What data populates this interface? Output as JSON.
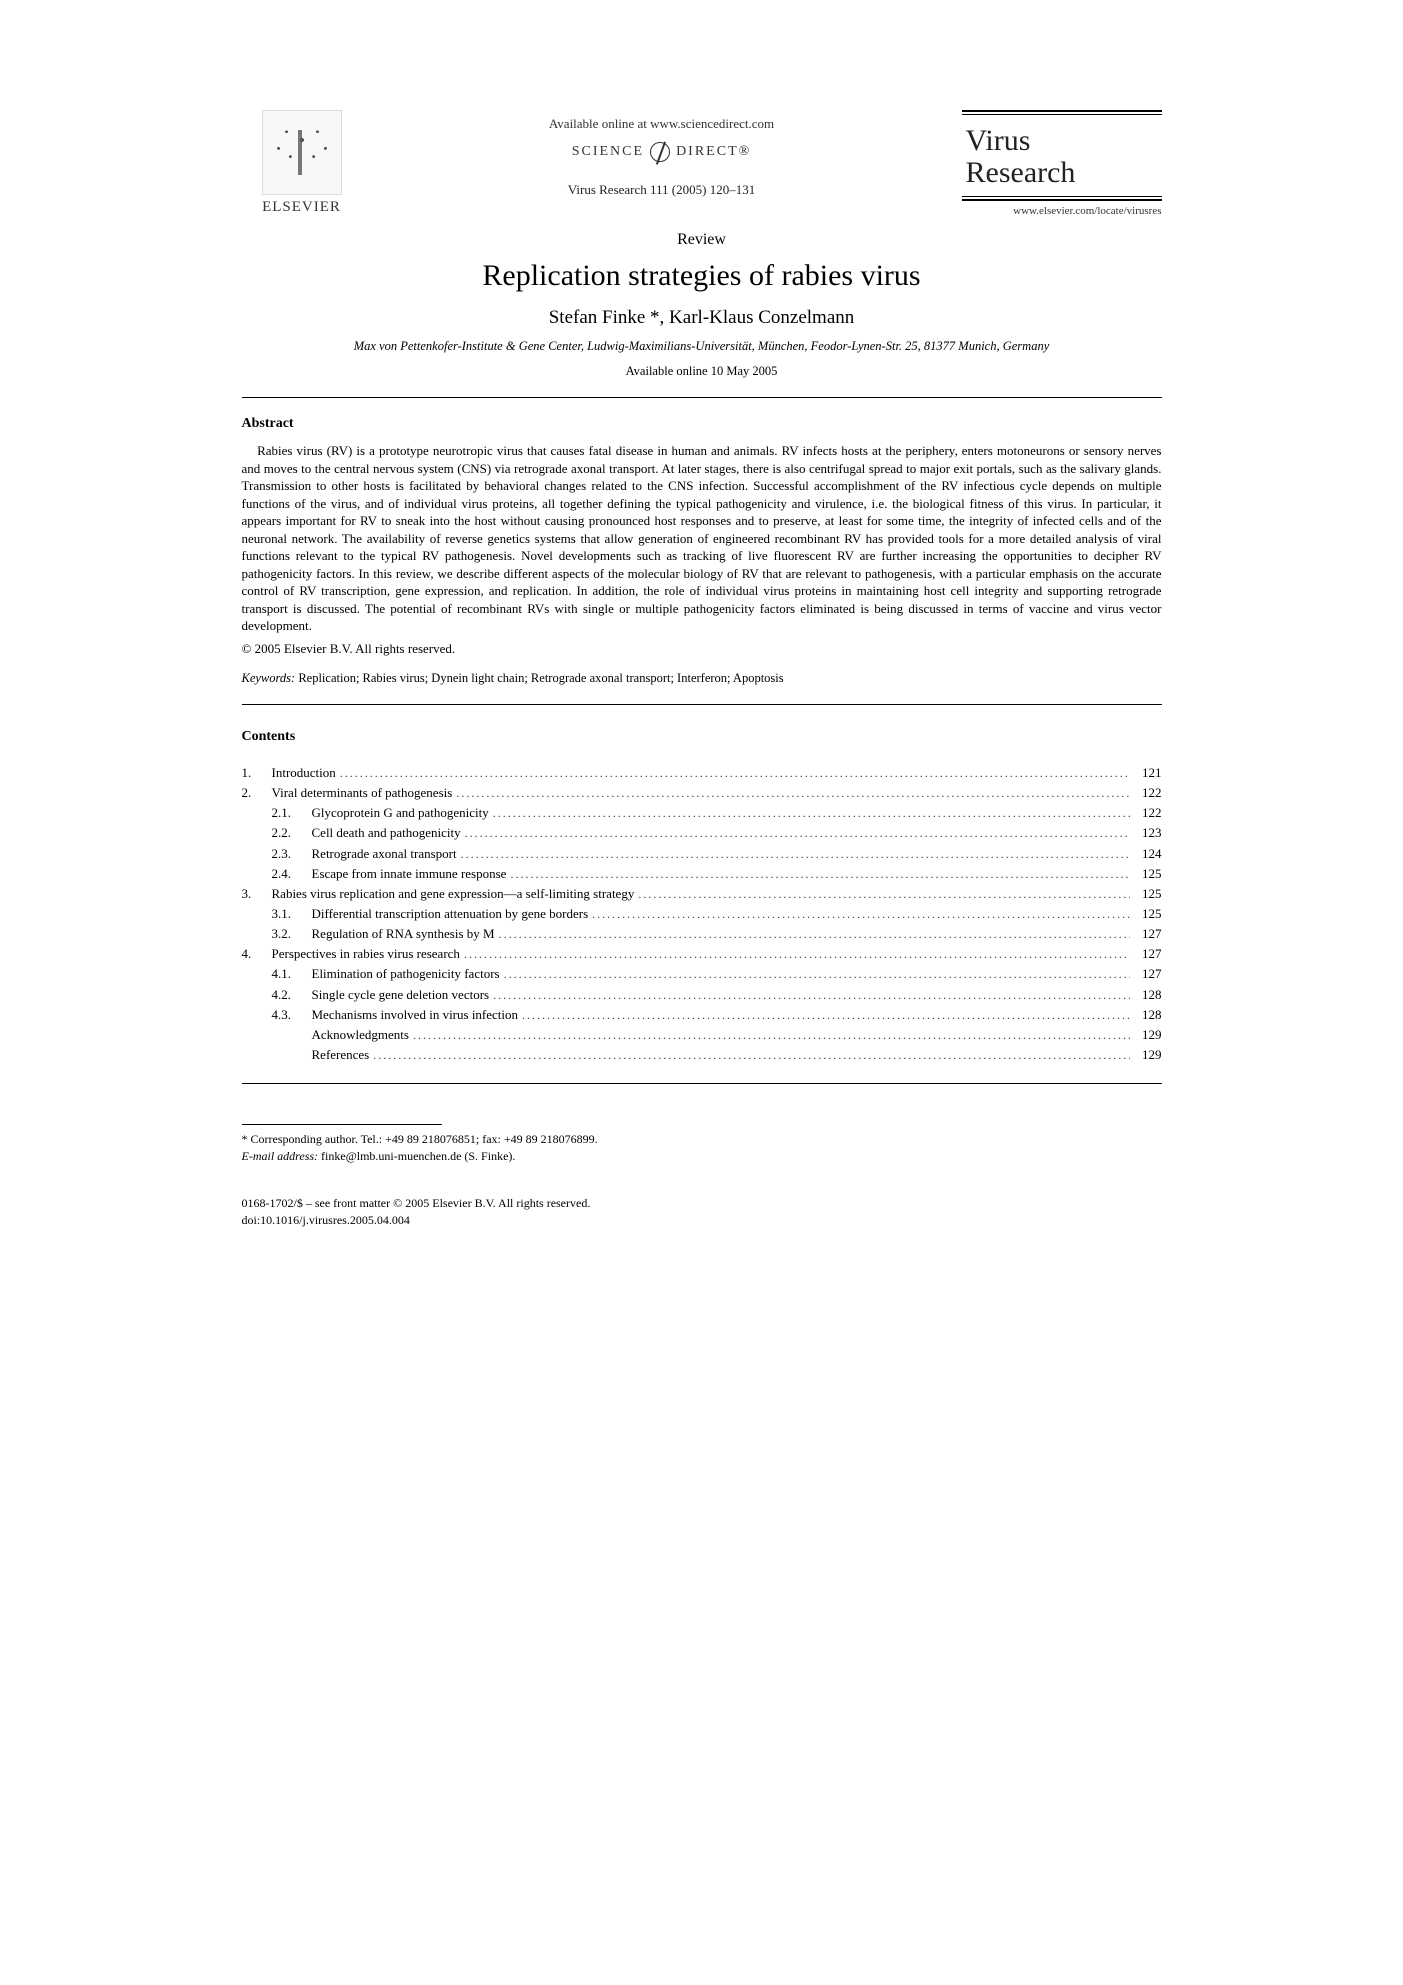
{
  "colors": {
    "text": "#222222",
    "rule": "#000000",
    "background": "#ffffff"
  },
  "typography": {
    "body_family": "Times New Roman",
    "title_fontsize_pt": 22,
    "authors_fontsize_pt": 14,
    "body_fontsize_pt": 10,
    "journal_fontsize_pt": 22
  },
  "header": {
    "publisher_name": "ELSEVIER",
    "available_online": "Available online at www.sciencedirect.com",
    "sciencedirect_left": "SCIENCE",
    "sciencedirect_right": "DIRECT®",
    "citation": "Virus Research 111 (2005) 120–131",
    "journal_title_line1": "Virus",
    "journal_title_line2": "Research",
    "journal_url": "www.elsevier.com/locate/virusres"
  },
  "title_block": {
    "review_label": "Review",
    "title": "Replication strategies of rabies virus",
    "authors": "Stefan Finke *, Karl-Klaus Conzelmann",
    "affiliation": "Max von Pettenkofer-Institute & Gene Center, Ludwig-Maximilians-Universität, München, Feodor-Lynen-Str. 25, 81377 Munich, Germany",
    "available_date": "Available online 10 May 2005"
  },
  "abstract": {
    "heading": "Abstract",
    "body": "Rabies virus (RV) is a prototype neurotropic virus that causes fatal disease in human and animals. RV infects hosts at the periphery, enters motoneurons or sensory nerves and moves to the central nervous system (CNS) via retrograde axonal transport. At later stages, there is also centrifugal spread to major exit portals, such as the salivary glands. Transmission to other hosts is facilitated by behavioral changes related to the CNS infection. Successful accomplishment of the RV infectious cycle depends on multiple functions of the virus, and of individual virus proteins, all together defining the typical pathogenicity and virulence, i.e. the biological fitness of this virus. In particular, it appears important for RV to sneak into the host without causing pronounced host responses and to preserve, at least for some time, the integrity of infected cells and of the neuronal network. The availability of reverse genetics systems that allow generation of engineered recombinant RV has provided tools for a more detailed analysis of viral functions relevant to the typical RV pathogenesis. Novel developments such as tracking of live fluorescent RV are further increasing the opportunities to decipher RV pathogenicity factors. In this review, we describe different aspects of the molecular biology of RV that are relevant to pathogenesis, with a particular emphasis on the accurate control of RV transcription, gene expression, and replication. In addition, the role of individual virus proteins in maintaining host cell integrity and supporting retrograde transport is discussed. The potential of recombinant RVs with single or multiple pathogenicity factors eliminated is being discussed in terms of vaccine and virus vector development.",
    "copyright": "© 2005 Elsevier B.V. All rights reserved."
  },
  "keywords": {
    "label": "Keywords:",
    "text": "Replication; Rabies virus; Dynein light chain; Retrograde axonal transport; Interferon; Apoptosis"
  },
  "contents": {
    "heading": "Contents",
    "items": [
      {
        "level": 1,
        "num": "1.",
        "label": "Introduction",
        "page": "121"
      },
      {
        "level": 1,
        "num": "2.",
        "label": "Viral determinants of pathogenesis",
        "page": "122"
      },
      {
        "level": 2,
        "num": "2.1.",
        "label": "Glycoprotein G and pathogenicity",
        "page": "122"
      },
      {
        "level": 2,
        "num": "2.2.",
        "label": "Cell death and pathogenicity",
        "page": "123"
      },
      {
        "level": 2,
        "num": "2.3.",
        "label": "Retrograde axonal transport",
        "page": "124"
      },
      {
        "level": 2,
        "num": "2.4.",
        "label": "Escape from innate immune response",
        "page": "125"
      },
      {
        "level": 1,
        "num": "3.",
        "label": "Rabies virus replication and gene expression—a self-limiting strategy",
        "page": "125"
      },
      {
        "level": 2,
        "num": "3.1.",
        "label": "Differential transcription attenuation by gene borders",
        "page": "125"
      },
      {
        "level": 2,
        "num": "3.2.",
        "label": "Regulation of RNA synthesis by M",
        "page": "127"
      },
      {
        "level": 1,
        "num": "4.",
        "label": "Perspectives in rabies virus research",
        "page": "127"
      },
      {
        "level": 2,
        "num": "4.1.",
        "label": "Elimination of pathogenicity factors",
        "page": "127"
      },
      {
        "level": 2,
        "num": "4.2.",
        "label": "Single cycle gene deletion vectors",
        "page": "128"
      },
      {
        "level": 2,
        "num": "4.3.",
        "label": "Mechanisms involved in virus infection",
        "page": "128"
      },
      {
        "level": 2,
        "num": "",
        "label": "Acknowledgments",
        "page": "129"
      },
      {
        "level": 2,
        "num": "",
        "label": "References",
        "page": "129"
      }
    ]
  },
  "footnote": {
    "corresponding": "* Corresponding author. Tel.: +49 89 218076851; fax: +49 89 218076899.",
    "email_label": "E-mail address:",
    "email": "finke@lmb.uni-muenchen.de (S. Finke)."
  },
  "bottom": {
    "line1": "0168-1702/$ – see front matter © 2005 Elsevier B.V. All rights reserved.",
    "line2": "doi:10.1016/j.virusres.2005.04.004"
  }
}
